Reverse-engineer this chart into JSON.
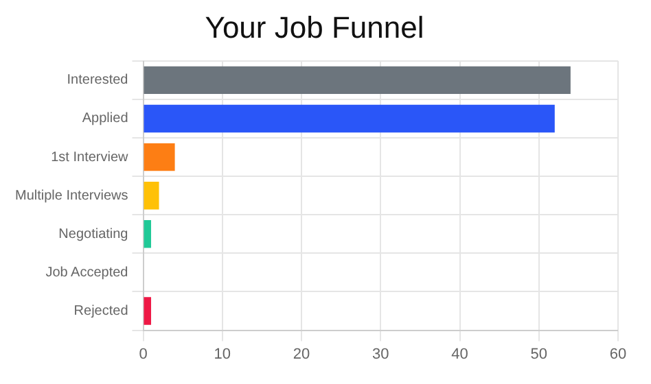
{
  "chart_data": {
    "type": "bar",
    "orientation": "horizontal",
    "title": "Your Job Funnel",
    "categories": [
      "Interested",
      "Applied",
      "1st Interview",
      "Multiple Interviews",
      "Negotiating",
      "Job Accepted",
      "Rejected"
    ],
    "values": [
      54,
      52,
      4,
      2,
      1,
      0,
      1
    ],
    "colors": [
      "#6c757d",
      "#2a56f8",
      "#fd7e14",
      "#ffc107",
      "#20c997",
      "#17a2b8",
      "#ee1845"
    ],
    "xlim": [
      0,
      60
    ],
    "xticks": [
      0,
      10,
      20,
      30,
      40,
      50,
      60
    ],
    "grid": true,
    "legend": false
  }
}
